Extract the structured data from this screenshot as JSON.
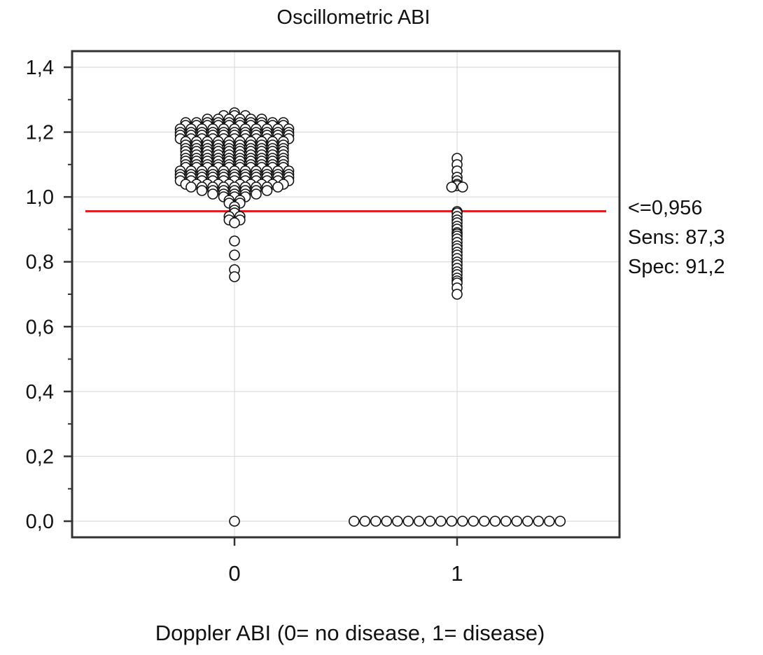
{
  "chart_data": {
    "type": "scatter",
    "style": "dot-plot (beeswarm)",
    "title": "Oscillometric ABI",
    "xlabel": "Doppler ABI (0= no disease, 1= disease)",
    "ylabel": "",
    "categories": [
      "0",
      "1"
    ],
    "ylim": [
      0,
      1.4
    ],
    "yticks": [
      {
        "value": 0.0,
        "label": "0,0"
      },
      {
        "value": 0.2,
        "label": "0,2"
      },
      {
        "value": 0.4,
        "label": "0,4"
      },
      {
        "value": 0.6,
        "label": "0,6"
      },
      {
        "value": 0.8,
        "label": "0,8"
      },
      {
        "value": 1.0,
        "label": "1,0"
      },
      {
        "value": 1.2,
        "label": "1,2"
      },
      {
        "value": 1.4,
        "label": "1,4"
      }
    ],
    "grid": true,
    "groups": [
      {
        "category": "0",
        "values": [
          1.26,
          1.25,
          1.25,
          1.25,
          1.24,
          1.24,
          1.24,
          1.24,
          1.24,
          1.24,
          1.23,
          1.23,
          1.23,
          1.23,
          1.23,
          1.23,
          1.23,
          1.23,
          1.23,
          1.23,
          1.22,
          1.22,
          1.22,
          1.22,
          1.22,
          1.22,
          1.22,
          1.22,
          1.22,
          1.22,
          1.21,
          1.21,
          1.21,
          1.21,
          1.21,
          1.21,
          1.21,
          1.21,
          1.21,
          1.21,
          1.21,
          1.2,
          1.2,
          1.2,
          1.2,
          1.2,
          1.2,
          1.2,
          1.2,
          1.2,
          1.2,
          1.2,
          1.19,
          1.19,
          1.19,
          1.19,
          1.19,
          1.19,
          1.19,
          1.19,
          1.19,
          1.19,
          1.19,
          1.18,
          1.18,
          1.18,
          1.18,
          1.18,
          1.18,
          1.18,
          1.18,
          1.18,
          1.18,
          1.18,
          1.17,
          1.17,
          1.17,
          1.17,
          1.17,
          1.17,
          1.17,
          1.17,
          1.17,
          1.17,
          1.16,
          1.16,
          1.16,
          1.16,
          1.16,
          1.16,
          1.16,
          1.16,
          1.16,
          1.16,
          1.15,
          1.15,
          1.15,
          1.15,
          1.15,
          1.15,
          1.15,
          1.15,
          1.15,
          1.15,
          1.14,
          1.14,
          1.14,
          1.14,
          1.14,
          1.14,
          1.14,
          1.14,
          1.14,
          1.14,
          1.13,
          1.13,
          1.13,
          1.13,
          1.13,
          1.13,
          1.13,
          1.13,
          1.13,
          1.13,
          1.12,
          1.12,
          1.12,
          1.12,
          1.12,
          1.12,
          1.12,
          1.12,
          1.12,
          1.12,
          1.11,
          1.11,
          1.11,
          1.11,
          1.11,
          1.11,
          1.11,
          1.11,
          1.11,
          1.11,
          1.1,
          1.1,
          1.1,
          1.1,
          1.1,
          1.1,
          1.1,
          1.1,
          1.1,
          1.1,
          1.09,
          1.09,
          1.09,
          1.09,
          1.09,
          1.09,
          1.09,
          1.09,
          1.09,
          1.09,
          1.08,
          1.08,
          1.08,
          1.08,
          1.08,
          1.08,
          1.08,
          1.08,
          1.08,
          1.08,
          1.08,
          1.07,
          1.07,
          1.07,
          1.07,
          1.07,
          1.07,
          1.07,
          1.07,
          1.07,
          1.07,
          1.07,
          1.06,
          1.06,
          1.06,
          1.06,
          1.06,
          1.06,
          1.06,
          1.06,
          1.06,
          1.06,
          1.06,
          1.05,
          1.05,
          1.05,
          1.05,
          1.05,
          1.05,
          1.05,
          1.05,
          1.05,
          1.05,
          1.05,
          1.04,
          1.04,
          1.04,
          1.04,
          1.04,
          1.04,
          1.04,
          1.04,
          1.04,
          1.04,
          1.03,
          1.03,
          1.03,
          1.03,
          1.03,
          1.03,
          1.03,
          1.03,
          1.03,
          1.02,
          1.02,
          1.02,
          1.02,
          1.02,
          1.02,
          1.02,
          1.01,
          1.01,
          1.01,
          1.01,
          1.01,
          1.0,
          1.0,
          1.0,
          0.99,
          0.99,
          0.98,
          0.98,
          0.97,
          0.96,
          0.95,
          0.94,
          0.94,
          0.93,
          0.93,
          0.92,
          0.865,
          0.82,
          0.775,
          0.755,
          0.0
        ]
      },
      {
        "category": "1",
        "values": [
          1.12,
          1.1,
          1.08,
          1.06,
          1.05,
          1.04,
          1.035,
          1.03,
          1.03,
          0.955,
          0.95,
          0.94,
          0.93,
          0.92,
          0.91,
          0.9,
          0.89,
          0.885,
          0.88,
          0.87,
          0.86,
          0.85,
          0.84,
          0.83,
          0.82,
          0.81,
          0.8,
          0.79,
          0.78,
          0.77,
          0.76,
          0.75,
          0.74,
          0.735,
          0.72,
          0.7,
          0.0,
          0.0,
          0.0,
          0.0,
          0.0,
          0.0,
          0.0,
          0.0,
          0.0,
          0.0,
          0.0,
          0.0,
          0.0,
          0.0,
          0.0,
          0.0,
          0.0,
          0.0,
          0.0,
          0.0
        ]
      }
    ],
    "reference_line": {
      "value": 0.956,
      "color": "#e02020"
    },
    "annotations": [
      "<=0,956",
      "Sens: 87,3",
      "Spec: 91,2"
    ],
    "colors": {
      "marker_fill": "#ffffff",
      "marker_stroke": "#111111",
      "grid": "#d4d4d4",
      "axis": "#333333"
    }
  }
}
